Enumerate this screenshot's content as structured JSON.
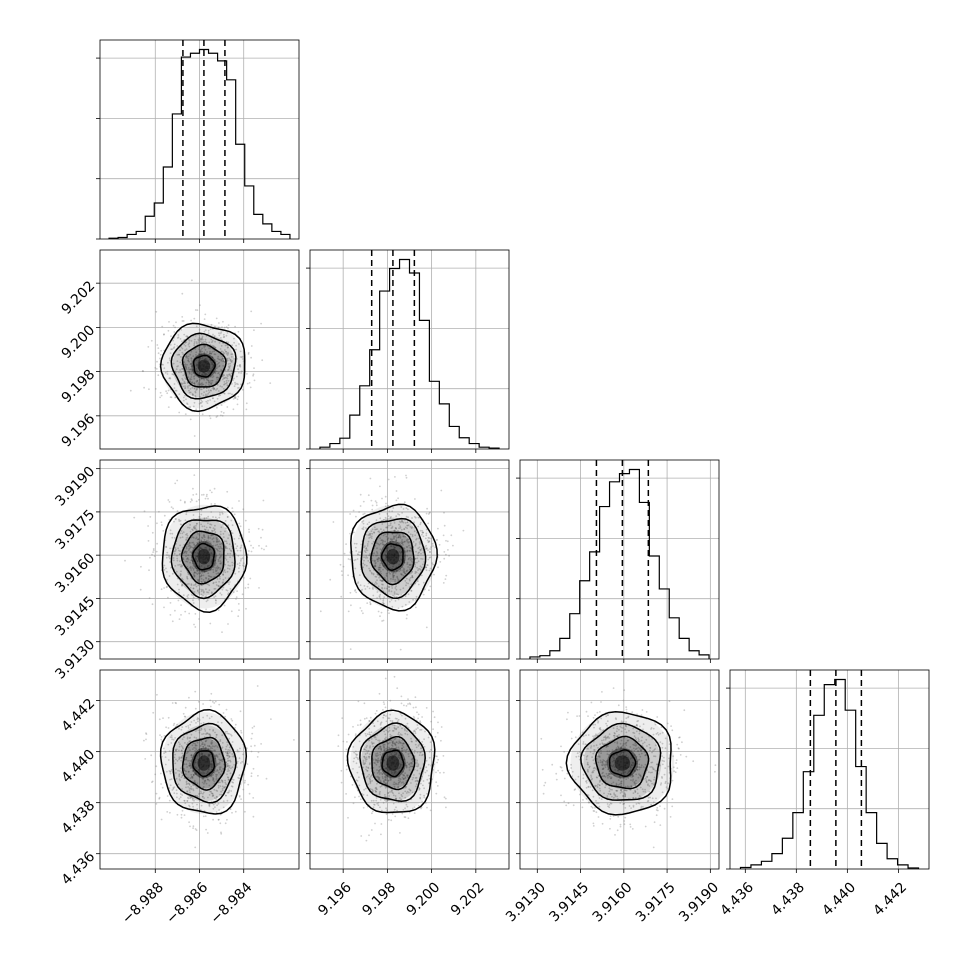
{
  "chart_data": {
    "type": "corner",
    "grid": true,
    "parameters": [
      {
        "range": [
          -8.9905,
          -8.9815
        ],
        "ticks": [
          "−8.988",
          "−8.986",
          "−8.984"
        ],
        "tick_values": [
          -8.988,
          -8.986,
          -8.984
        ],
        "median": -8.9858,
        "q16": -8.98675,
        "q84": -8.98485,
        "histogram": [
          0.2,
          0.4,
          1.2,
          2.0,
          6.0,
          9.5,
          19.0,
          33.0,
          48.0,
          49.0,
          50.0,
          49.0,
          47.0,
          42.0,
          25.0,
          14.0,
          6.5,
          4.0,
          2.0,
          1.2
        ]
      },
      {
        "range": [
          9.1945,
          9.2035
        ],
        "ticks": [
          "9.196",
          "9.198",
          "9.200",
          "9.202"
        ],
        "tick_values": [
          9.196,
          9.198,
          9.2,
          9.202
        ],
        "median": 9.19825,
        "q16": 9.19729,
        "q84": 9.19922,
        "histogram": [
          0.4,
          1.2,
          2.4,
          7.5,
          14.0,
          22.0,
          35.0,
          40.0,
          42.0,
          39.0,
          28.5,
          15.0,
          10.0,
          5.0,
          2.5,
          1.2,
          0.4,
          0.2
        ]
      },
      {
        "range": [
          3.9124,
          3.9193
        ],
        "ticks": [
          "3.9130",
          "3.9145",
          "3.9160",
          "3.9175",
          "3.9190"
        ],
        "tick_values": [
          3.913,
          3.9145,
          3.916,
          3.9175,
          3.919
        ],
        "median": 3.91595,
        "q16": 3.91505,
        "q84": 3.91685,
        "histogram": [
          0.5,
          0.8,
          2.0,
          5.0,
          11.0,
          19.0,
          26.0,
          37.0,
          43.0,
          45.0,
          46.0,
          38.0,
          25.0,
          17.0,
          10.0,
          5.0,
          2.0,
          1.0
        ]
      },
      {
        "range": [
          4.4354,
          4.4432
        ],
        "ticks": [
          "4.436",
          "4.438",
          "4.440",
          "4.442"
        ],
        "tick_values": [
          4.436,
          4.438,
          4.44,
          4.442
        ],
        "median": 4.43955,
        "q16": 4.43855,
        "q84": 4.44055,
        "histogram": [
          0.3,
          0.8,
          1.5,
          3.0,
          6.0,
          11.0,
          19.0,
          30.0,
          36.0,
          37.0,
          31.0,
          20.0,
          11.0,
          5.0,
          2.0,
          0.8,
          0.2
        ]
      }
    ],
    "contour_levels_sigma": [
      0.5,
      1.0,
      1.5,
      2.0
    ],
    "colors": {
      "contour": "#000000",
      "points": "#777777",
      "grid": "#b0b0b0",
      "hist": "#000000"
    }
  }
}
